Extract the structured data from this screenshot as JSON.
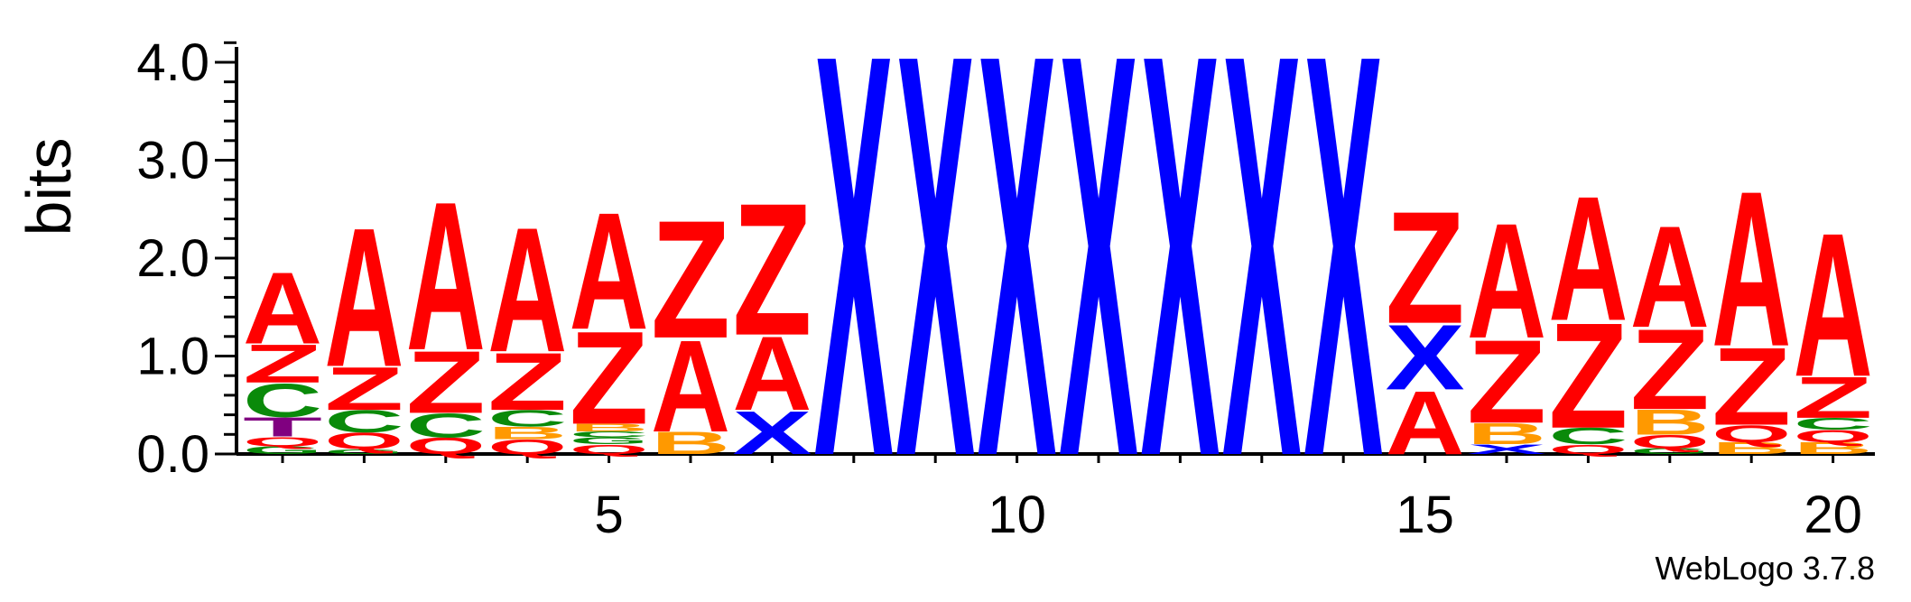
{
  "chart_data": {
    "type": "sequence_logo",
    "ylabel": "bits",
    "ylim": [
      0,
      4.2
    ],
    "yticks": [
      "0.0",
      "1.0",
      "2.0",
      "3.0",
      "4.0"
    ],
    "xticks": [
      5,
      10,
      15,
      20
    ],
    "footer": "WebLogo 3.7.8",
    "colors": {
      "A": "#ff0000",
      "Z": "#ff0000",
      "Q": "#ff0000",
      "X": "#0000ff",
      "C": "#0a8a0a",
      "G": "#0a8a0a",
      "B": "#ff9900",
      "T": "#800080"
    },
    "positions": [
      {
        "pos": 1,
        "stack": [
          {
            "l": "G",
            "h": 0.08
          },
          {
            "l": "Q",
            "h": 0.1
          },
          {
            "l": "T",
            "h": 0.2
          },
          {
            "l": "C",
            "h": 0.35
          },
          {
            "l": "Z",
            "h": 0.4
          },
          {
            "l": "A",
            "h": 0.75
          }
        ]
      },
      {
        "pos": 2,
        "stack": [
          {
            "l": "G",
            "h": 0.05
          },
          {
            "l": "Q",
            "h": 0.17
          },
          {
            "l": "C",
            "h": 0.23
          },
          {
            "l": "Z",
            "h": 0.45
          },
          {
            "l": "A",
            "h": 1.45
          }
        ]
      },
      {
        "pos": 3,
        "stack": [
          {
            "l": "Q",
            "h": 0.17
          },
          {
            "l": "C",
            "h": 0.25
          },
          {
            "l": "Z",
            "h": 0.65
          },
          {
            "l": "A",
            "h": 1.55
          }
        ]
      },
      {
        "pos": 4,
        "stack": [
          {
            "l": "Q",
            "h": 0.15
          },
          {
            "l": "B",
            "h": 0.13
          },
          {
            "l": "C",
            "h": 0.17
          },
          {
            "l": "Z",
            "h": 0.6
          },
          {
            "l": "A",
            "h": 1.3
          }
        ]
      },
      {
        "pos": 5,
        "stack": [
          {
            "l": "Q",
            "h": 0.1
          },
          {
            "l": "G",
            "h": 0.07
          },
          {
            "l": "C",
            "h": 0.06
          },
          {
            "l": "B",
            "h": 0.08
          },
          {
            "l": "Z",
            "h": 0.97
          },
          {
            "l": "A",
            "h": 1.22
          }
        ]
      },
      {
        "pos": 6,
        "stack": [
          {
            "l": "B",
            "h": 0.23
          },
          {
            "l": "A",
            "h": 0.96
          },
          {
            "l": "Z",
            "h": 1.23
          }
        ]
      },
      {
        "pos": 7,
        "stack": [
          {
            "l": "X",
            "h": 0.45
          },
          {
            "l": "A",
            "h": 0.77
          },
          {
            "l": "Z",
            "h": 1.38
          }
        ]
      },
      {
        "pos": 8,
        "stack": [
          {
            "l": "X",
            "h": 4.2
          }
        ]
      },
      {
        "pos": 9,
        "stack": [
          {
            "l": "X",
            "h": 4.2
          }
        ]
      },
      {
        "pos": 10,
        "stack": [
          {
            "l": "X",
            "h": 4.2
          }
        ]
      },
      {
        "pos": 11,
        "stack": [
          {
            "l": "X",
            "h": 4.2
          }
        ]
      },
      {
        "pos": 12,
        "stack": [
          {
            "l": "X",
            "h": 4.2
          }
        ]
      },
      {
        "pos": 13,
        "stack": [
          {
            "l": "X",
            "h": 4.2
          }
        ]
      },
      {
        "pos": 14,
        "stack": [
          {
            "l": "X",
            "h": 4.2
          }
        ]
      },
      {
        "pos": 15,
        "stack": [
          {
            "l": "A",
            "h": 0.66
          },
          {
            "l": "X",
            "h": 0.68
          },
          {
            "l": "Z",
            "h": 1.17
          }
        ]
      },
      {
        "pos": 16,
        "stack": [
          {
            "l": "X",
            "h": 0.1
          },
          {
            "l": "B",
            "h": 0.22
          },
          {
            "l": "Z",
            "h": 0.87
          },
          {
            "l": "A",
            "h": 1.2
          }
        ]
      },
      {
        "pos": 17,
        "stack": [
          {
            "l": "Q",
            "h": 0.1
          },
          {
            "l": "C",
            "h": 0.17
          },
          {
            "l": "Z",
            "h": 1.1
          },
          {
            "l": "A",
            "h": 1.3
          }
        ]
      },
      {
        "pos": 18,
        "stack": [
          {
            "l": "G",
            "h": 0.06
          },
          {
            "l": "Q",
            "h": 0.14
          },
          {
            "l": "B",
            "h": 0.26
          },
          {
            "l": "Z",
            "h": 0.84
          },
          {
            "l": "A",
            "h": 1.06
          }
        ]
      },
      {
        "pos": 19,
        "stack": [
          {
            "l": "B",
            "h": 0.12
          },
          {
            "l": "Q",
            "h": 0.18
          },
          {
            "l": "Z",
            "h": 0.81
          },
          {
            "l": "A",
            "h": 1.62
          }
        ]
      },
      {
        "pos": 20,
        "stack": [
          {
            "l": "B",
            "h": 0.12
          },
          {
            "l": "Q",
            "h": 0.13
          },
          {
            "l": "C",
            "h": 0.12
          },
          {
            "l": "Z",
            "h": 0.43
          },
          {
            "l": "A",
            "h": 1.5
          }
        ]
      }
    ]
  }
}
